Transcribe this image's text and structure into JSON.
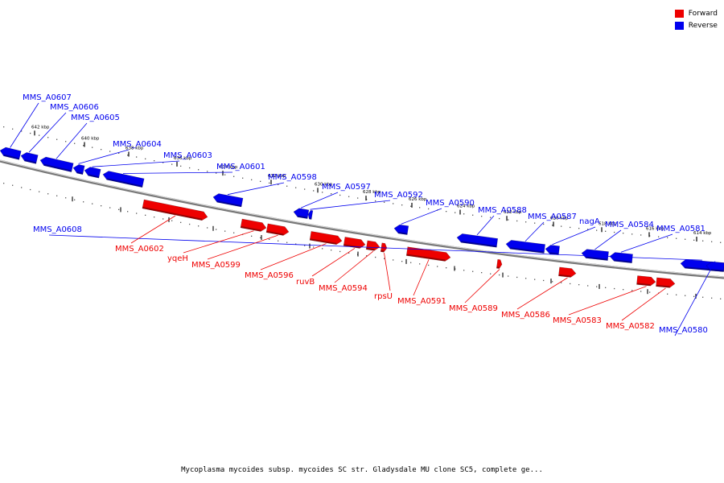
{
  "legend": {
    "forward_label": "Forward",
    "reverse_label": "Reverse",
    "forward_color": "#ee0000",
    "reverse_color": "#0000ee"
  },
  "caption": "Mycoplasma mycoides subsp. mycoides SC str. Gladysdale MU clone SC5, complete ge...",
  "scale_labels": [
    "642 kbp",
    "640 kbp",
    "638 kbp",
    "636 kbp",
    "634 kbp",
    "632 kbp",
    "630 kbp",
    "628 kbp",
    "626 kbp",
    "624 kbp",
    "622 kbp",
    "620 kbp",
    "618 kbp",
    "616 kbp",
    "614 kbp"
  ],
  "genes": [
    {
      "name": "MMS_A0607",
      "strand": "reverse"
    },
    {
      "name": "MMS_A0606",
      "strand": "reverse"
    },
    {
      "name": "MMS_A0605",
      "strand": "reverse"
    },
    {
      "name": "MMS_A0604",
      "strand": "reverse"
    },
    {
      "name": "MMS_A0603",
      "strand": "reverse"
    },
    {
      "name": "MMS_A0601",
      "strand": "reverse"
    },
    {
      "name": "MMS_A0598",
      "strand": "reverse"
    },
    {
      "name": "MMS_A0597",
      "strand": "reverse"
    },
    {
      "name": "MMS_A0592",
      "strand": "reverse"
    },
    {
      "name": "MMS_A0590",
      "strand": "reverse"
    },
    {
      "name": "MMS_A0588",
      "strand": "reverse"
    },
    {
      "name": "MMS_A0587",
      "strand": "reverse"
    },
    {
      "name": "nagA",
      "strand": "reverse"
    },
    {
      "name": "MMS_A0584",
      "strand": "reverse"
    },
    {
      "name": "MMS_A0581",
      "strand": "reverse"
    },
    {
      "name": "MMS_A0608",
      "strand": "reverse"
    },
    {
      "name": "MMS_A0580",
      "strand": "reverse"
    },
    {
      "name": "MMS_A0602",
      "strand": "forward"
    },
    {
      "name": "yqeH",
      "strand": "forward"
    },
    {
      "name": "MMS_A0599",
      "strand": "forward"
    },
    {
      "name": "MMS_A0596",
      "strand": "forward"
    },
    {
      "name": "ruvB",
      "strand": "forward"
    },
    {
      "name": "MMS_A0594",
      "strand": "forward"
    },
    {
      "name": "rpsU",
      "strand": "forward"
    },
    {
      "name": "MMS_A0591",
      "strand": "forward"
    },
    {
      "name": "MMS_A0589",
      "strand": "forward"
    },
    {
      "name": "MMS_A0586",
      "strand": "forward"
    },
    {
      "name": "MMS_A0583",
      "strand": "forward"
    },
    {
      "name": "MMS_A0582",
      "strand": "forward"
    }
  ]
}
